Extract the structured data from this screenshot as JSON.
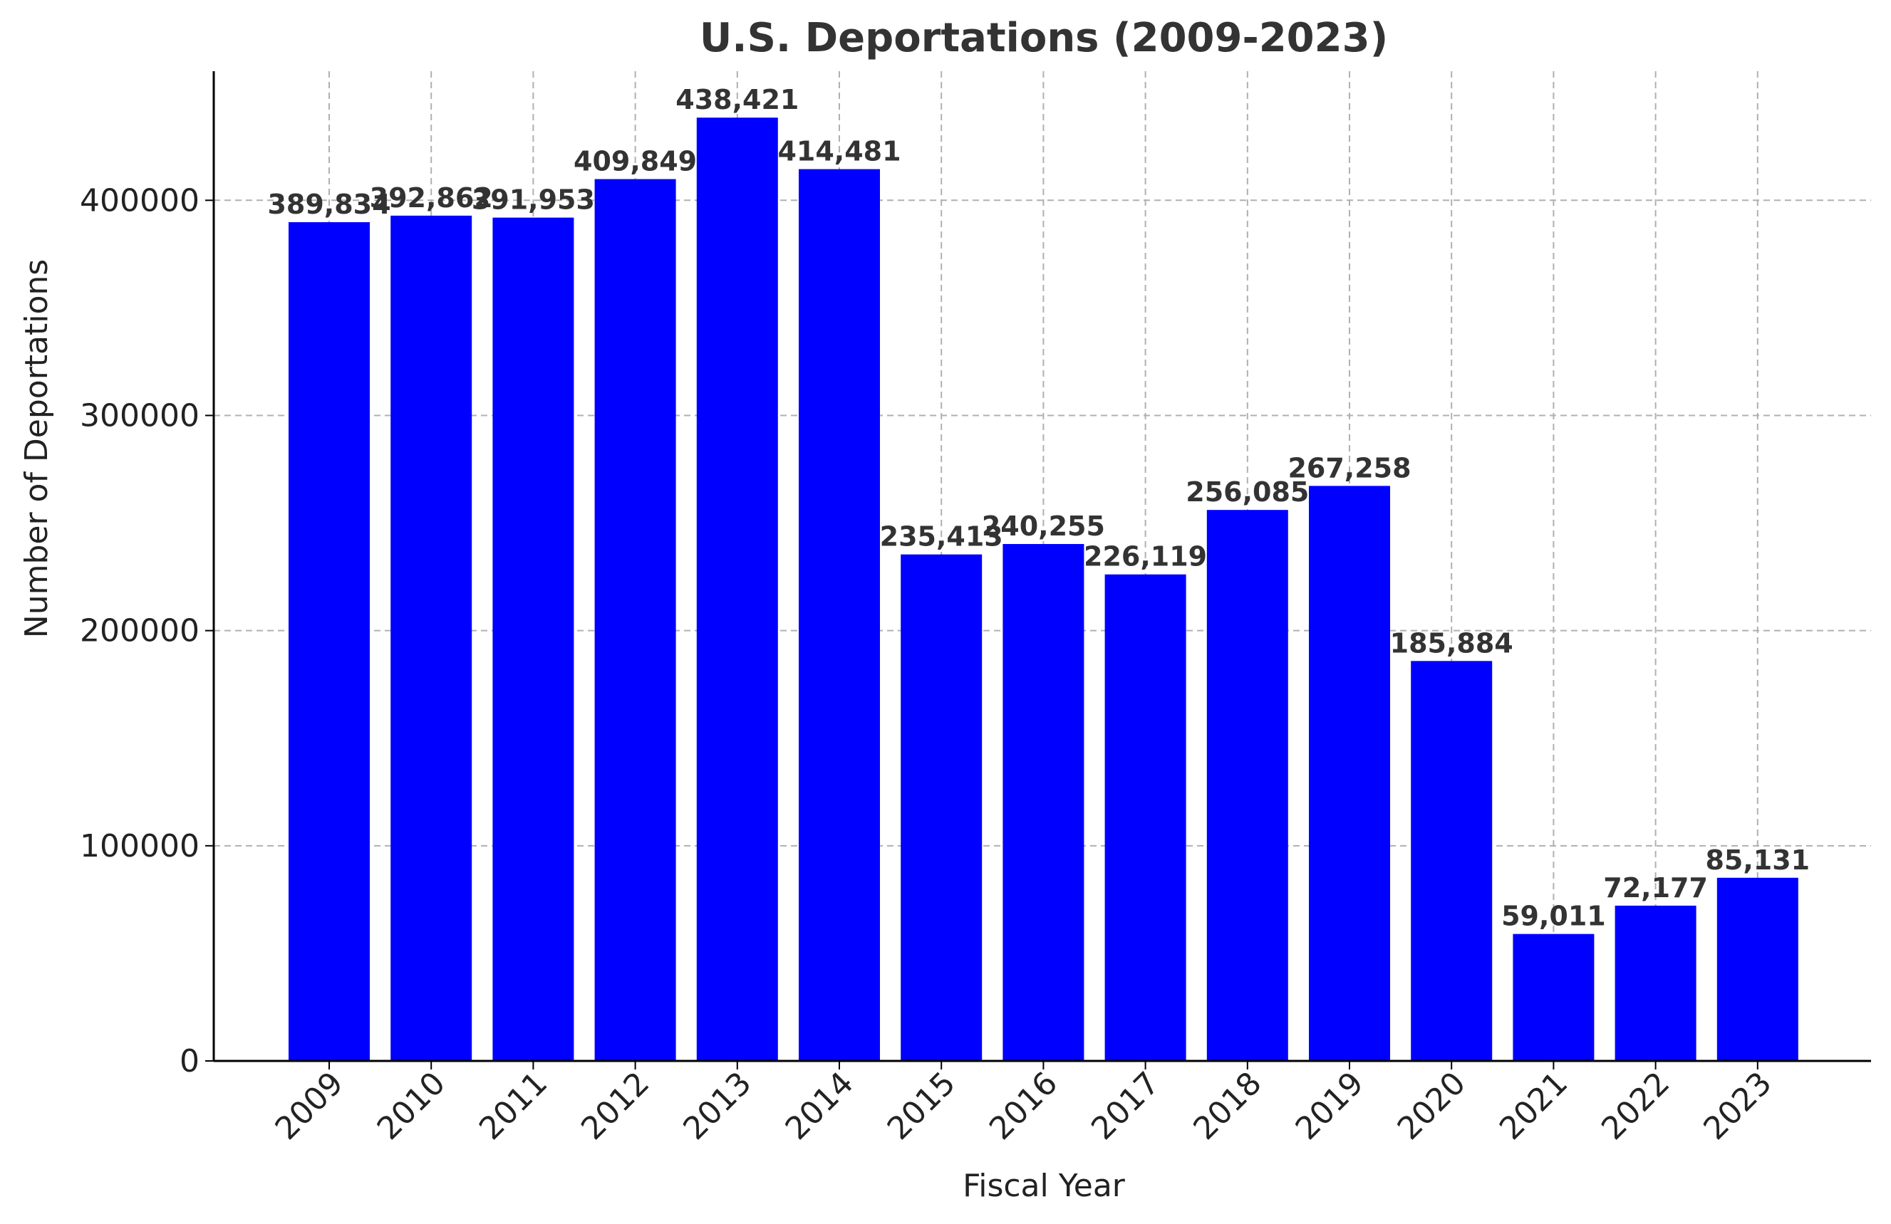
{
  "chart_data": {
    "type": "bar",
    "title": "U.S. Deportations (2009-2023)",
    "xlabel": "Fiscal Year",
    "ylabel": "Number of Deportations",
    "categories": [
      "2009",
      "2010",
      "2011",
      "2012",
      "2013",
      "2014",
      "2015",
      "2016",
      "2017",
      "2018",
      "2019",
      "2020",
      "2021",
      "2022",
      "2023"
    ],
    "values": [
      389834,
      392862,
      391953,
      409849,
      438421,
      414481,
      235413,
      240255,
      226119,
      256085,
      267258,
      185884,
      59011,
      72177,
      85131
    ],
    "data_labels": [
      "389,834",
      "392,862",
      "391,953",
      "409,849",
      "438,421",
      "414,481",
      "235,413",
      "240,255",
      "226,119",
      "256,085",
      "267,258",
      "185,884",
      "59,011",
      "72,177",
      "85,131"
    ],
    "yticks": [
      0,
      100000,
      200000,
      300000,
      400000
    ],
    "ytick_labels": [
      "0",
      "100000",
      "200000",
      "300000",
      "400000"
    ],
    "ylim": [
      0,
      460000
    ],
    "bar_color": "#0000ff",
    "grid": true,
    "legend": "none"
  }
}
